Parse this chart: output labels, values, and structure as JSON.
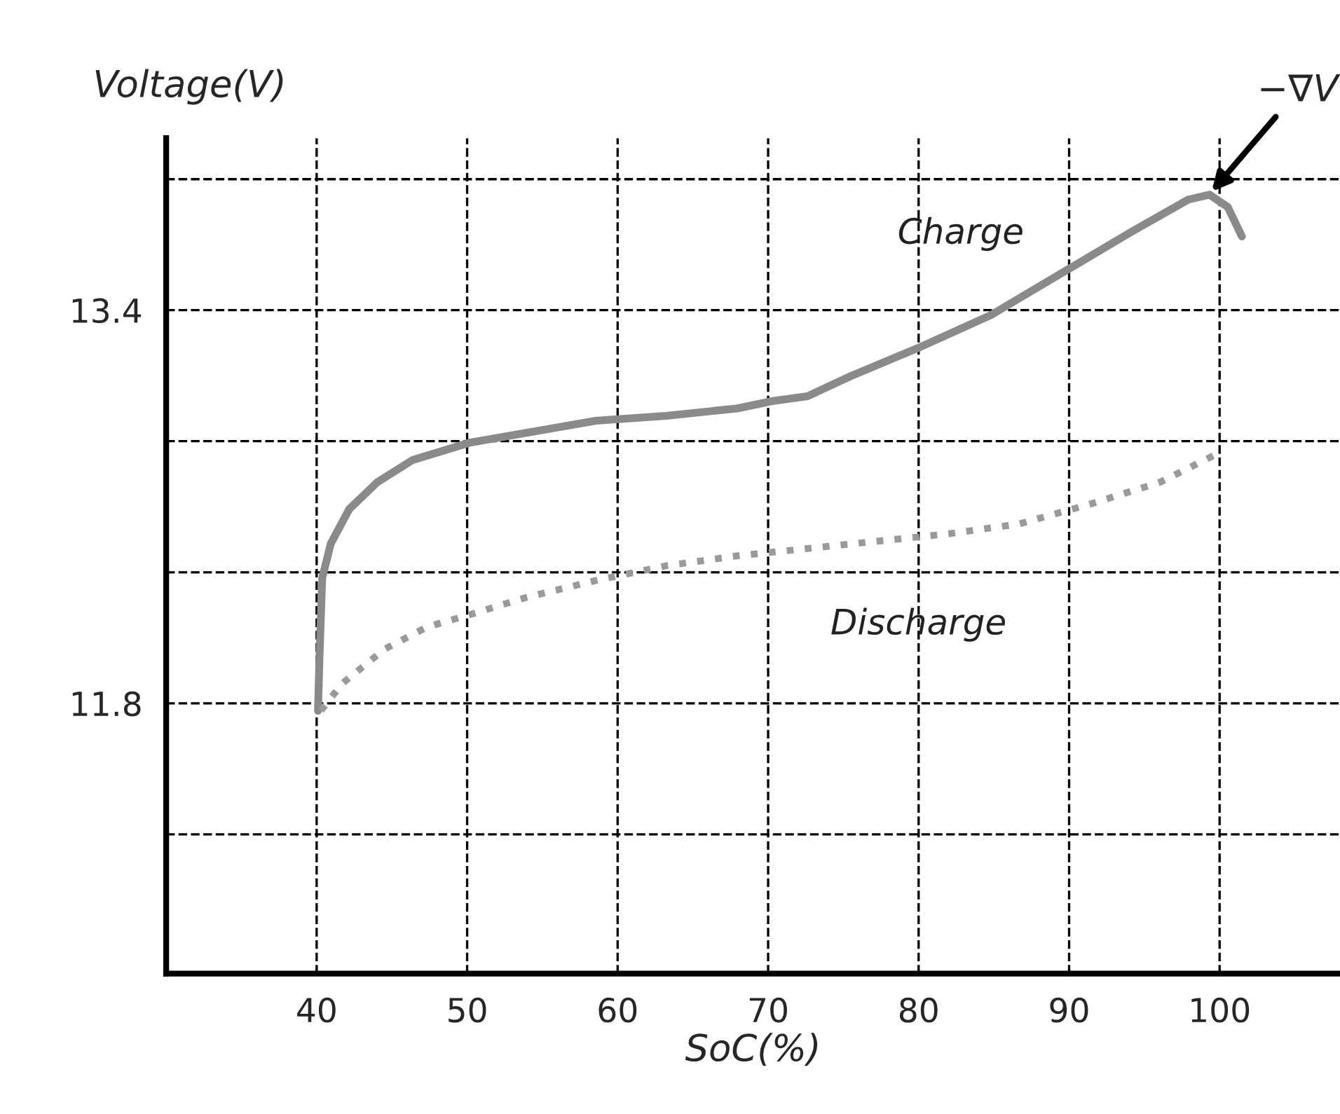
{
  "chart_data": {
    "type": "line",
    "xlabel": "SoC(%)",
    "ylabel": "Voltage(V)",
    "xlim": [
      30,
      108
    ],
    "ylim": [
      10.7,
      14.1
    ],
    "xticks": [
      40,
      50,
      60,
      70,
      80,
      90,
      100
    ],
    "yticks": [
      {
        "value": 11.267,
        "label": null
      },
      11.8,
      {
        "value": 12.333,
        "label": null
      },
      {
        "value": 12.867,
        "label": null
      },
      13.4,
      {
        "value": 13.933,
        "label": null
      }
    ],
    "grid": true,
    "legend": false,
    "series": [
      {
        "name": "Charge",
        "color": "#8a8a8a",
        "line_style": "solid",
        "x": [
          40.09,
          40.19,
          40.37,
          40.94,
          42.16,
          44.03,
          46.37,
          50.12,
          53.87,
          58.56,
          63.24,
          67.93,
          70.27,
          72.62,
          75.43,
          80.11,
          84.8,
          89.49,
          94.17,
          97.92,
          99.33,
          100.54,
          101.48
        ],
        "values": [
          11.77,
          11.99,
          12.31,
          12.45,
          12.59,
          12.7,
          12.79,
          12.86,
          12.9,
          12.95,
          12.97,
          13.0,
          13.03,
          13.05,
          13.13,
          13.25,
          13.38,
          13.55,
          13.72,
          13.85,
          13.87,
          13.82,
          13.7
        ]
      },
      {
        "name": "Discharge",
        "color": "#9a9a9a",
        "line_style": "dotted",
        "x": [
          40.28,
          41.69,
          44.5,
          47.31,
          50.12,
          53.87,
          58.56,
          63.24,
          67.93,
          72.62,
          77.3,
          81.99,
          86.67,
          91.36,
          96.05,
          100
        ],
        "values": [
          11.77,
          11.88,
          12.02,
          12.11,
          12.16,
          12.23,
          12.3,
          12.36,
          12.4,
          12.43,
          12.46,
          12.49,
          12.53,
          12.61,
          12.7,
          12.82
        ]
      }
    ],
    "annotations": [
      {
        "text": "−∇V",
        "x": 99.3,
        "y": 13.87
      }
    ]
  }
}
